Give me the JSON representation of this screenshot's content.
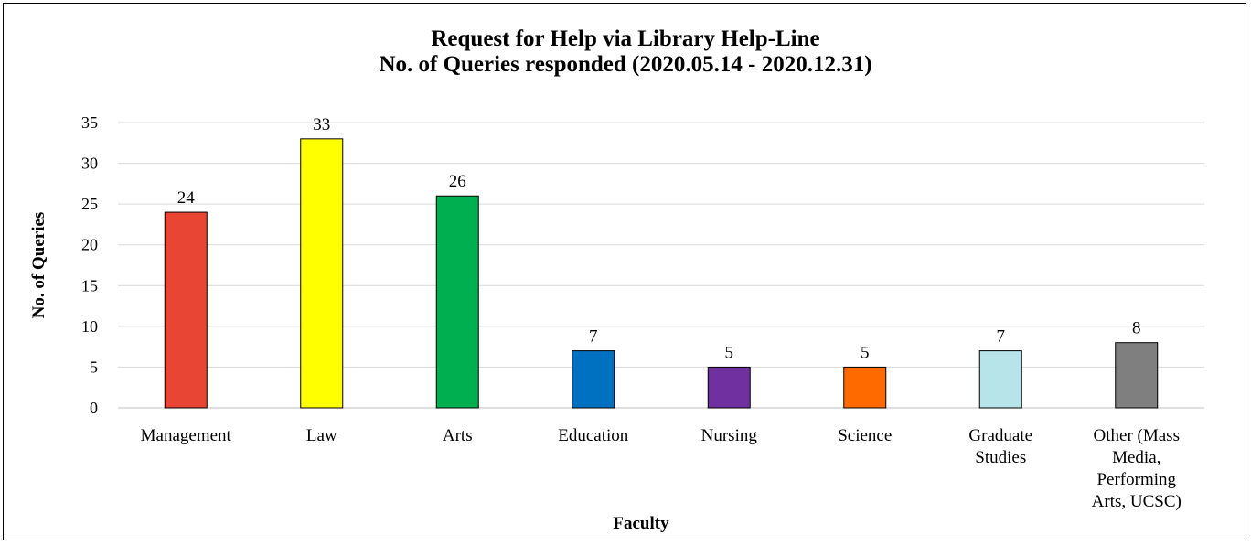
{
  "chart_data": {
    "type": "bar",
    "title": [
      "Request for Help via Library Help-Line",
      "No. of Queries responded (2020.05.14 - 2020.12.31)"
    ],
    "xlabel": "Faculty",
    "ylabel": "No. of Queries",
    "ylim": [
      0,
      35
    ],
    "ytick_step": 5,
    "grid": true,
    "legend": "none",
    "categories": [
      [
        "Management"
      ],
      [
        "Law"
      ],
      [
        "Arts"
      ],
      [
        "Education"
      ],
      [
        "Nursing"
      ],
      [
        "Science"
      ],
      [
        "Graduate",
        "Studies"
      ],
      [
        "Other (Mass",
        "Media,",
        "Performing",
        "Arts, UCSC)"
      ]
    ],
    "values": [
      24,
      33,
      26,
      7,
      5,
      5,
      7,
      8
    ],
    "colors": [
      "#e84535",
      "#ffff00",
      "#00b050",
      "#0070c0",
      "#7030a0",
      "#ff6a00",
      "#b7e4e8",
      "#7f7f7f"
    ],
    "data_labels": true
  }
}
